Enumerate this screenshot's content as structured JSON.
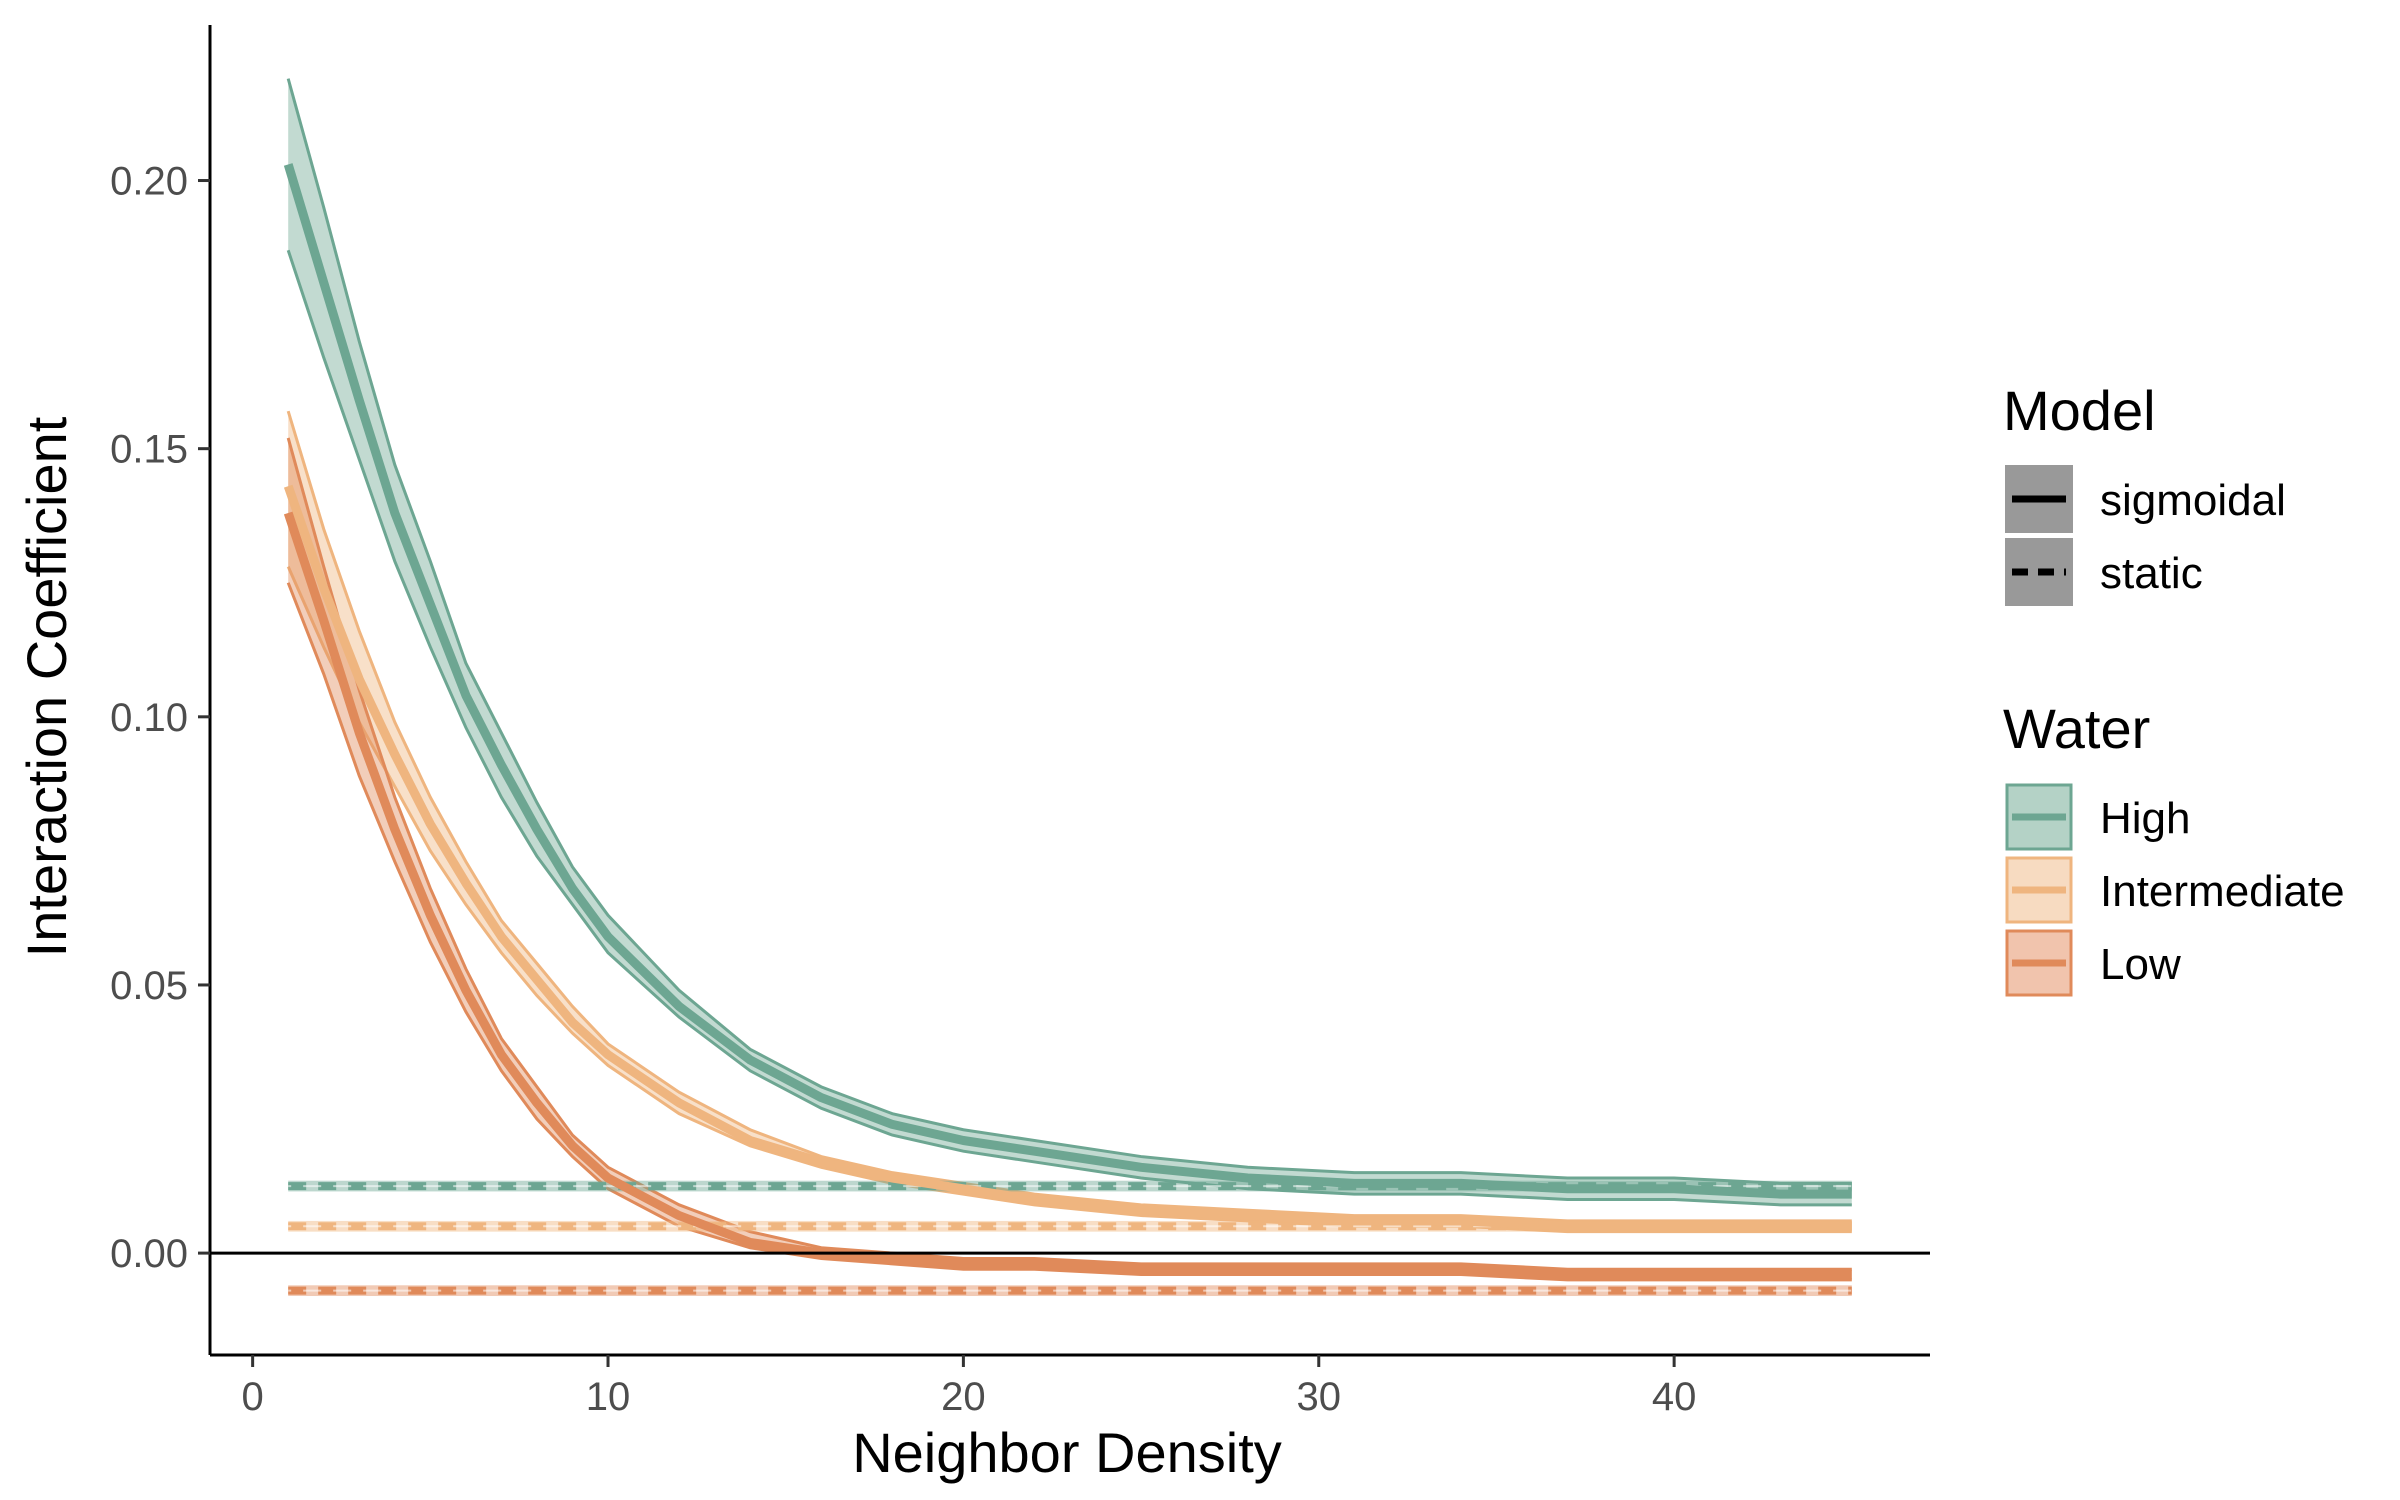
{
  "chart_data": {
    "type": "line",
    "xlabel": "Neighbor Density",
    "ylabel": "Interaction Coefficient",
    "xlim": [
      -1.2,
      47.2
    ],
    "ylim": [
      -0.019,
      0.229
    ],
    "x_ticks": [
      0,
      10,
      20,
      30,
      40
    ],
    "x_tick_labels": [
      "0",
      "10",
      "20",
      "30",
      "40"
    ],
    "y_ticks": [
      0,
      0.05,
      0.1,
      0.15,
      0.2
    ],
    "y_tick_labels": [
      "0.00",
      "0.05",
      "0.10",
      "0.15",
      "0.20"
    ],
    "reference_line_y": 0,
    "grid": false,
    "legend_placement": "right",
    "x": [
      1,
      2,
      3,
      4,
      5,
      6,
      7,
      8,
      9,
      10,
      12,
      14,
      16,
      18,
      20,
      22,
      25,
      28,
      31,
      34,
      37,
      40,
      43,
      45
    ],
    "series": [
      {
        "name": "High",
        "model": "sigmoidal",
        "color": "#6da692",
        "values": [
          0.203,
          0.181,
          0.159,
          0.138,
          0.121,
          0.104,
          0.091,
          0.079,
          0.068,
          0.059,
          0.046,
          0.036,
          0.029,
          0.024,
          0.021,
          0.019,
          0.016,
          0.014,
          0.013,
          0.013,
          0.012,
          0.012,
          0.011,
          0.011
        ],
        "lower": [
          0.187,
          0.167,
          0.148,
          0.129,
          0.113,
          0.098,
          0.085,
          0.074,
          0.065,
          0.056,
          0.044,
          0.034,
          0.027,
          0.022,
          0.019,
          0.017,
          0.014,
          0.012,
          0.011,
          0.011,
          0.01,
          0.01,
          0.009,
          0.009
        ],
        "upper": [
          0.219,
          0.195,
          0.17,
          0.147,
          0.129,
          0.11,
          0.097,
          0.084,
          0.072,
          0.063,
          0.049,
          0.038,
          0.031,
          0.026,
          0.023,
          0.021,
          0.018,
          0.016,
          0.015,
          0.015,
          0.014,
          0.014,
          0.013,
          0.013
        ]
      },
      {
        "name": "Intermediate",
        "model": "sigmoidal",
        "color": "#efb57f",
        "values": [
          0.143,
          0.124,
          0.107,
          0.093,
          0.08,
          0.069,
          0.059,
          0.051,
          0.043,
          0.037,
          0.028,
          0.021,
          0.017,
          0.014,
          0.012,
          0.01,
          0.008,
          0.007,
          0.006,
          0.006,
          0.005,
          0.005,
          0.005,
          0.005
        ],
        "lower": [
          0.128,
          0.113,
          0.099,
          0.087,
          0.075,
          0.065,
          0.056,
          0.048,
          0.041,
          0.035,
          0.026,
          0.02,
          0.016,
          0.013,
          0.011,
          0.009,
          0.007,
          0.006,
          0.005,
          0.005,
          0.004,
          0.004,
          0.004,
          0.004
        ],
        "upper": [
          0.157,
          0.135,
          0.116,
          0.099,
          0.085,
          0.073,
          0.062,
          0.054,
          0.046,
          0.039,
          0.03,
          0.023,
          0.018,
          0.015,
          0.013,
          0.011,
          0.009,
          0.008,
          0.007,
          0.007,
          0.006,
          0.006,
          0.006,
          0.006
        ]
      },
      {
        "name": "Low",
        "model": "sigmoidal",
        "color": "#e08a5a",
        "values": [
          0.138,
          0.118,
          0.097,
          0.079,
          0.063,
          0.049,
          0.037,
          0.028,
          0.02,
          0.014,
          0.007,
          0.002,
          0.0,
          -0.001,
          -0.002,
          -0.002,
          -0.003,
          -0.003,
          -0.003,
          -0.003,
          -0.004,
          -0.004,
          -0.004,
          -0.004
        ],
        "lower": [
          0.125,
          0.108,
          0.089,
          0.073,
          0.058,
          0.045,
          0.034,
          0.025,
          0.018,
          0.012,
          0.005,
          0.001,
          -0.001,
          -0.002,
          -0.003,
          -0.003,
          -0.004,
          -0.004,
          -0.004,
          -0.004,
          -0.005,
          -0.005,
          -0.005,
          -0.005
        ],
        "upper": [
          0.152,
          0.128,
          0.105,
          0.085,
          0.068,
          0.053,
          0.04,
          0.031,
          0.022,
          0.016,
          0.009,
          0.004,
          0.001,
          0.0,
          -0.001,
          -0.001,
          -0.002,
          -0.002,
          -0.002,
          -0.002,
          -0.003,
          -0.003,
          -0.003,
          -0.003
        ]
      }
    ],
    "static_series": [
      {
        "name": "High",
        "model": "static",
        "color": "#6da692",
        "value": 0.0125,
        "lower": 0.0115,
        "upper": 0.0135
      },
      {
        "name": "Intermediate",
        "model": "static",
        "color": "#efb57f",
        "value": 0.005,
        "lower": 0.004,
        "upper": 0.006
      },
      {
        "name": "Low",
        "model": "static",
        "color": "#e08a5a",
        "value": -0.007,
        "lower": -0.008,
        "upper": -0.006
      }
    ],
    "legend": {
      "model_title": "Model",
      "model_items": [
        {
          "label": "sigmoidal",
          "linetype": "solid"
        },
        {
          "label": "static",
          "linetype": "dashed"
        }
      ],
      "water_title": "Water",
      "water_items": [
        {
          "label": "High",
          "color": "#6da692",
          "fill": "#b4d2c6"
        },
        {
          "label": "Intermediate",
          "color": "#efb57f",
          "fill": "#f7dbc1"
        },
        {
          "label": "Low",
          "color": "#e08a5a",
          "fill": "#f1c4ad"
        }
      ]
    }
  }
}
